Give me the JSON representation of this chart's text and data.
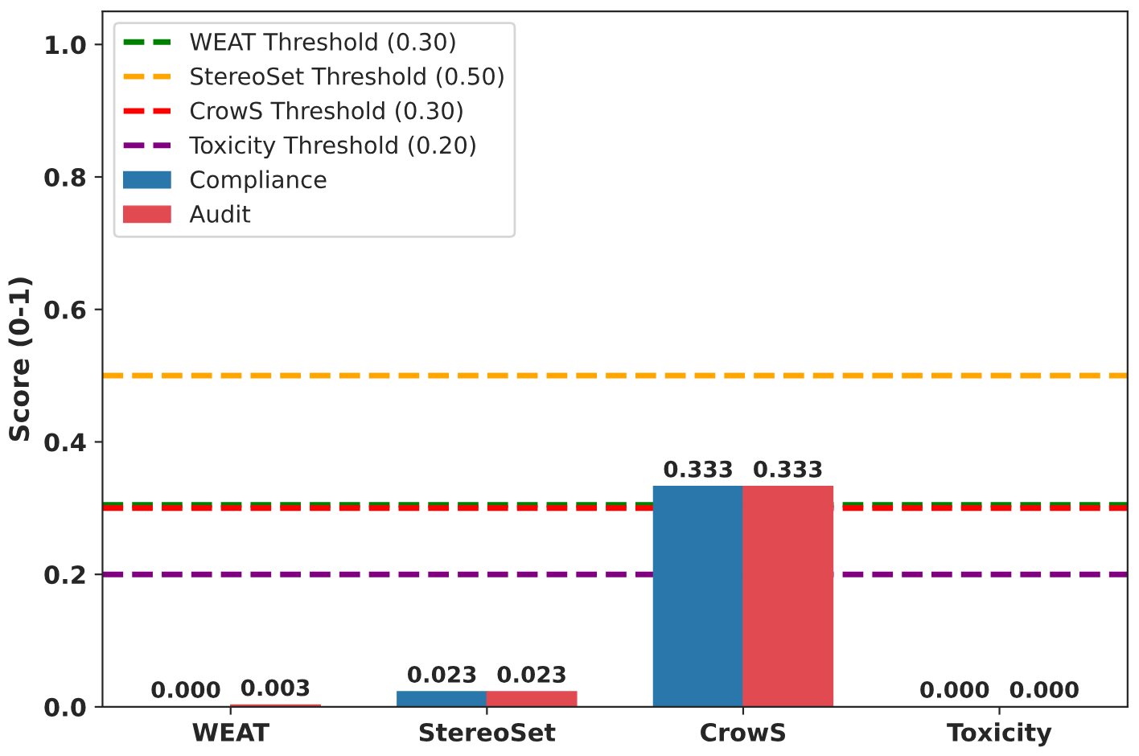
{
  "chart_data": {
    "type": "bar",
    "ylabel": "Score (0-1)",
    "categories": [
      "WEAT",
      "StereoSet",
      "CrowS",
      "Toxicity"
    ],
    "series": [
      {
        "name": "Compliance",
        "color": "#2a78ab",
        "values": [
          0.0,
          0.023,
          0.333,
          0.0
        ],
        "value_labels": [
          "0.000",
          "0.023",
          "0.333",
          "0.000"
        ]
      },
      {
        "name": "Audit",
        "color": "#e24a51",
        "values": [
          0.003,
          0.023,
          0.333,
          0.0
        ],
        "value_labels": [
          "0.003",
          "0.023",
          "0.333",
          "0.000"
        ]
      }
    ],
    "ref_lines": [
      {
        "axis": "y",
        "value": 0.305,
        "label": "WEAT Threshold (0.30)",
        "color": "#008000",
        "line_style": "dashed"
      },
      {
        "axis": "y",
        "value": 0.5,
        "label": "StereoSet Threshold (0.50)",
        "color": "#ffa500",
        "line_style": "dashed"
      },
      {
        "axis": "y",
        "value": 0.3,
        "label": "CrowS Threshold (0.30)",
        "color": "#ff0000",
        "line_style": "dashed"
      },
      {
        "axis": "y",
        "value": 0.2,
        "label": "Toxicity Threshold (0.20)",
        "color": "#800080",
        "line_style": "dashed"
      }
    ],
    "ylim": [
      0,
      1.05
    ],
    "yticks": [
      {
        "value": 0,
        "label": "0.0"
      },
      {
        "value": 0.2,
        "label": "0.2"
      },
      {
        "value": 0.4,
        "label": "0.4"
      },
      {
        "value": 0.6,
        "label": "0.6"
      },
      {
        "value": 0.8,
        "label": "0.8"
      },
      {
        "value": 1.0,
        "label": "1.0"
      }
    ],
    "legend": "top left",
    "grid": false
  }
}
